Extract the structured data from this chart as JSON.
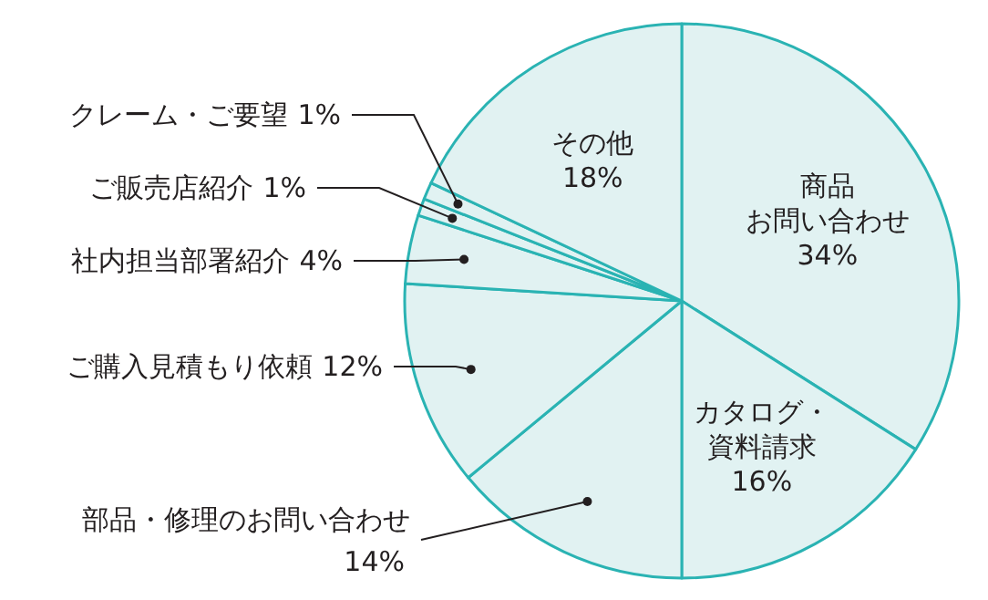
{
  "chart_data": {
    "type": "pie",
    "categories": [
      "商品お問い合わせ",
      "カタログ・資料請求",
      "部品・修理のお問い合わせ",
      "ご購入見積もり依頼",
      "社内担当部署紹介",
      "ご販売店紹介",
      "クレーム・ご要望",
      "その他"
    ],
    "values": [
      34,
      16,
      14,
      12,
      4,
      1,
      1,
      18
    ],
    "colors": [
      "#e1f2f2",
      "#e1f2f2",
      "#e1f2f2",
      "#e1f2f2",
      "#e1f2f2",
      "#e1f2f2",
      "#e1f2f2",
      "#e1f2f2"
    ],
    "value_labels": [
      "34%",
      "16%",
      "14%",
      "12%",
      "4%",
      "1%",
      "1%",
      "18%"
    ]
  }
}
